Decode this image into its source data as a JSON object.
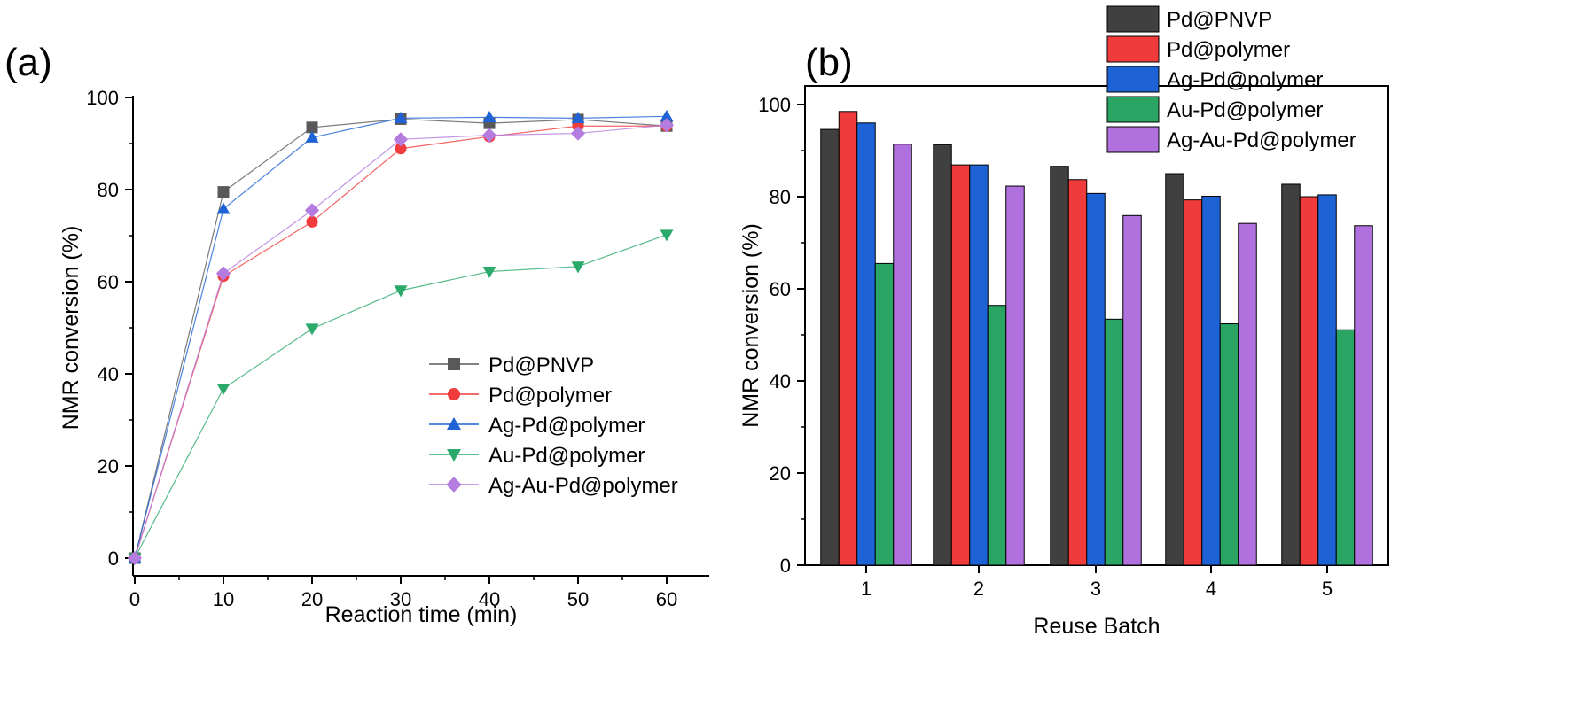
{
  "panels": {
    "a_label": "(a)",
    "b_label": "(b)"
  },
  "chart_data": [
    {
      "type": "line",
      "panel": "(a)",
      "xlabel": "Reaction time (min)",
      "ylabel": "NMR conversion (%)",
      "xlim": [
        -2,
        65
      ],
      "ylim": [
        -1,
        100
      ],
      "xticks": [
        0,
        10,
        20,
        30,
        40,
        50,
        60
      ],
      "yticks": [
        0,
        20,
        40,
        60,
        80,
        100
      ],
      "x": [
        0,
        10,
        20,
        30,
        40,
        50,
        60
      ],
      "legend_position": "lower-right",
      "grid": false,
      "series": [
        {
          "name": "Pd@PNVP",
          "marker": "square",
          "color": "#595959",
          "values": [
            0,
            79.5,
            93.5,
            95.3,
            94.4,
            95.2,
            93.8
          ]
        },
        {
          "name": "Pd@polymer",
          "marker": "circle",
          "color": "#f03c3c",
          "values": [
            0,
            61.2,
            73.0,
            88.9,
            91.5,
            93.8,
            93.8
          ]
        },
        {
          "name": "Ag-Pd@polymer",
          "marker": "triangle-up",
          "color": "#1f63d6",
          "values": [
            0,
            75.8,
            91.3,
            95.5,
            95.7,
            95.5,
            95.9
          ]
        },
        {
          "name": "Au-Pd@polymer",
          "marker": "triangle-down",
          "color": "#2aa96a",
          "values": [
            0,
            36.8,
            49.8,
            58.1,
            62.2,
            63.3,
            70.2
          ]
        },
        {
          "name": "Ag-Au-Pd@polymer",
          "marker": "diamond",
          "color": "#b57ce0",
          "values": [
            0,
            61.8,
            75.5,
            90.9,
            91.8,
            92.2,
            94.0
          ]
        }
      ]
    },
    {
      "type": "bar",
      "panel": "(b)",
      "xlabel": "Reuse Batch",
      "ylabel": "NMR conversion (%)",
      "ylim": [
        0,
        102
      ],
      "yticks": [
        0,
        20,
        40,
        60,
        80,
        100
      ],
      "categories": [
        "1",
        "2",
        "3",
        "4",
        "5"
      ],
      "legend_position": "top-right",
      "grid": false,
      "series": [
        {
          "name": "Pd@PNVP",
          "color": "#404040",
          "values": [
            94.6,
            91.3,
            86.6,
            85.0,
            82.7
          ]
        },
        {
          "name": "Pd@polymer",
          "color": "#ef3b3b",
          "values": [
            98.5,
            86.9,
            83.7,
            79.3,
            80.0
          ]
        },
        {
          "name": "Ag-Pd@polymer",
          "color": "#1e63d6",
          "values": [
            96.0,
            86.9,
            80.7,
            80.1,
            80.4
          ]
        },
        {
          "name": "Au-Pd@polymer",
          "color": "#2aa563",
          "values": [
            65.5,
            56.4,
            53.4,
            52.4,
            51.1
          ]
        },
        {
          "name": "Ag-Au-Pd@polymer",
          "color": "#b070de",
          "values": [
            91.4,
            82.3,
            75.9,
            74.2,
            73.7
          ]
        }
      ]
    }
  ]
}
